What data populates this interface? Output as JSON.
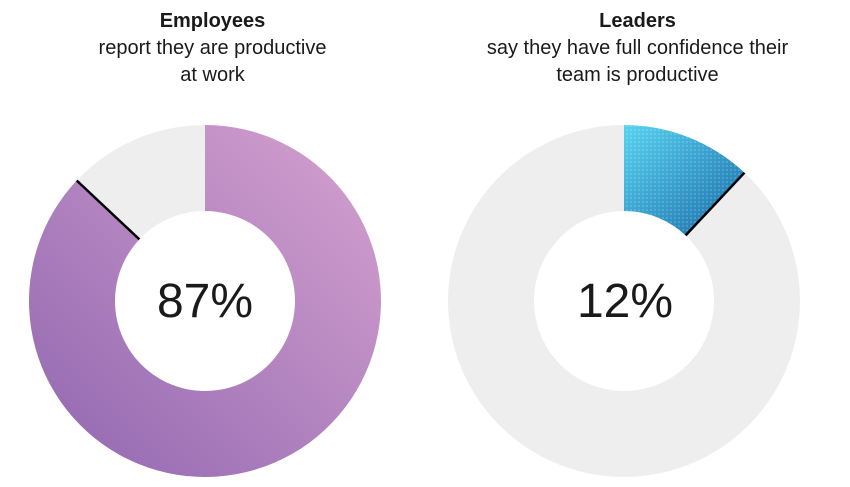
{
  "chart_data": [
    {
      "type": "pie",
      "title": "Employees",
      "subtitle_lines": [
        "report they are productive",
        "at work"
      ],
      "center_label": "87%",
      "value": 87,
      "remainder": 13,
      "colors": {
        "start": "#d7a2cf",
        "end": "#8f66b0",
        "remainder": "#eeeeee",
        "divider": "#000000"
      }
    },
    {
      "type": "pie",
      "title": "Leaders",
      "subtitle_lines": [
        "say they have full confidence their",
        "team is productive"
      ],
      "center_label": "12%",
      "value": 12,
      "remainder": 88,
      "colors": {
        "start": "#58d3f0",
        "end": "#1769a8",
        "remainder": "#eeeeee",
        "divider": "#000000"
      }
    }
  ]
}
